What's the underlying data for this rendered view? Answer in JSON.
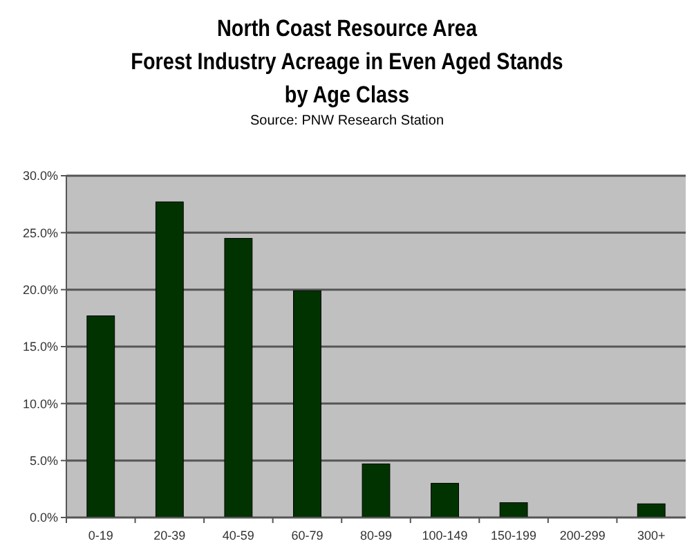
{
  "chart_data": {
    "type": "bar",
    "title": "North Coast Resource Area\nForest Industry Acreage in Even Aged Stands\nby Age Class",
    "subtitle": "Source: PNW Research Station",
    "categories": [
      "0-19",
      "20-39",
      "40-59",
      "60-79",
      "80-99",
      "100-149",
      "150-199",
      "200-299",
      "300+"
    ],
    "values": [
      17.7,
      27.7,
      24.5,
      19.9,
      4.7,
      3.0,
      1.3,
      0,
      1.2
    ],
    "color": "#013301",
    "ylim": [
      0,
      30
    ],
    "yticks": [
      {
        "value": 0,
        "label": "0.0%"
      },
      {
        "value": 5,
        "label": "5.0%"
      },
      {
        "value": 10,
        "label": "10.0%"
      },
      {
        "value": 15,
        "label": "15.0%"
      },
      {
        "value": 20,
        "label": "20.0%"
      },
      {
        "value": 25,
        "label": "25.0%"
      },
      {
        "value": 30,
        "label": "30.0%"
      }
    ],
    "grid": "y"
  }
}
